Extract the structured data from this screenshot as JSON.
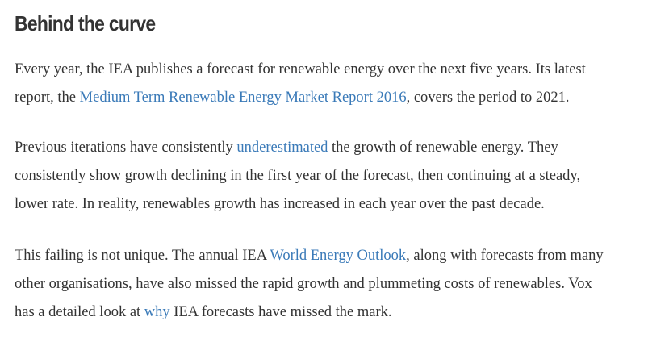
{
  "heading": "Behind the curve",
  "paragraphs": [
    {
      "lines": [
        [
          {
            "text": "Every year, the IEA publishes a forecast for renewable energy over the next five years. Its latest"
          }
        ],
        [
          {
            "text": "report, the "
          },
          {
            "text": "Medium Term Renewable Energy Market Report 2016",
            "link": true
          },
          {
            "text": ", covers the period to 2021."
          }
        ]
      ]
    },
    {
      "lines": [
        [
          {
            "text": "Previous iterations have consistently "
          },
          {
            "text": "underestimated",
            "link": true
          },
          {
            "text": " the growth of renewable energy. They"
          }
        ],
        [
          {
            "text": "consistently show growth declining in the first year of the forecast, then continuing at a steady,"
          }
        ],
        [
          {
            "text": "lower rate. In reality, renewables growth has increased in each year over the past decade."
          }
        ]
      ]
    },
    {
      "lines": [
        [
          {
            "text": "This failing is not unique. The annual IEA "
          },
          {
            "text": "World Energy Outlook",
            "link": true
          },
          {
            "text": ", along with forecasts from many"
          }
        ],
        [
          {
            "text": "other organisations, have also missed the rapid growth and plummeting costs of renewables. Vox"
          }
        ],
        [
          {
            "text": "has a detailed look at "
          },
          {
            "text": "why",
            "link": true
          },
          {
            "text": " IEA forecasts have missed the mark."
          }
        ]
      ]
    }
  ],
  "colors": {
    "text": "#333333",
    "link": "#3a7ab8",
    "background": "#ffffff"
  }
}
